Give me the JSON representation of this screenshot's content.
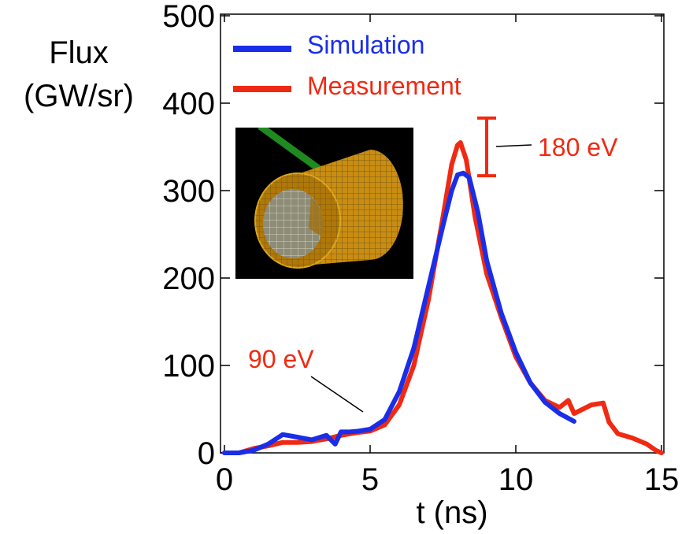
{
  "chart_data": {
    "type": "line",
    "xlabel": "t (ns)",
    "ylabel_line1": "Flux",
    "ylabel_line2": "(GW/sr)",
    "xlim": [
      0,
      15
    ],
    "ylim": [
      0,
      500
    ],
    "xticks": [
      0,
      5,
      10,
      15
    ],
    "yticks": [
      0,
      100,
      200,
      300,
      400,
      500
    ],
    "grid": false,
    "legend_position": "top-left",
    "series": [
      {
        "name": "Simulation",
        "color": "#1a2ee8",
        "x": [
          0,
          0.5,
          1,
          1.5,
          2,
          2.5,
          3,
          3.5,
          3.8,
          4,
          4.3,
          4.6,
          5,
          5.5,
          6,
          6.5,
          7,
          7.5,
          7.8,
          8.0,
          8.2,
          8.4,
          8.7,
          9,
          9.5,
          10,
          10.5,
          11,
          11.5,
          12
        ],
        "y": [
          0,
          0,
          3,
          10,
          21,
          18,
          15,
          20,
          10,
          24,
          24,
          25,
          27,
          38,
          70,
          120,
          190,
          260,
          300,
          318,
          320,
          315,
          275,
          220,
          160,
          115,
          80,
          58,
          45,
          36
        ]
      },
      {
        "name": "Measurement",
        "color": "#f02a12",
        "x": [
          0,
          0.5,
          1,
          1.5,
          2,
          2.5,
          3,
          3.5,
          4,
          4.5,
          5,
          5.5,
          6,
          6.5,
          7,
          7.5,
          7.8,
          8.0,
          8.1,
          8.3,
          8.6,
          9,
          9.5,
          10,
          10.5,
          11,
          11.5,
          11.8,
          12,
          12.3,
          12.6,
          13,
          13.2,
          13.5,
          14,
          14.5,
          14.8,
          15
        ],
        "y": [
          0,
          0,
          5,
          8,
          12,
          12,
          13,
          16,
          20,
          23,
          25,
          32,
          55,
          100,
          175,
          270,
          330,
          352,
          355,
          335,
          270,
          205,
          155,
          110,
          80,
          60,
          52,
          60,
          45,
          50,
          55,
          57,
          35,
          22,
          17,
          10,
          3,
          0
        ]
      }
    ],
    "error_bar": {
      "x": 9.0,
      "y_low": 317,
      "y_high": 383,
      "color": "#f02a12"
    },
    "annotations": [
      {
        "text": "180 eV",
        "color": "#f02a12"
      },
      {
        "text": "90 eV",
        "color": "#f02a12"
      }
    ]
  },
  "inset": {
    "description_icon": "hohlraum-cylinder-image",
    "background": "#000000"
  }
}
